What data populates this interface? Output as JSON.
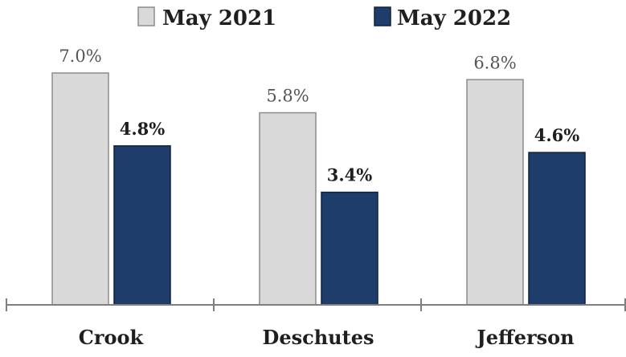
{
  "chart_data": {
    "type": "bar",
    "categories": [
      "Crook",
      "Deschutes",
      "Jefferson"
    ],
    "series": [
      {
        "name": "May 2021",
        "values": [
          7.0,
          5.8,
          6.8
        ],
        "labels": [
          "7.0%",
          "5.8%",
          "6.8%"
        ],
        "color": "#d9d9d9",
        "stroke": "#8c8c8c"
      },
      {
        "name": "May 2022",
        "values": [
          4.8,
          3.4,
          4.6
        ],
        "labels": [
          "4.8%",
          "3.4%",
          "4.6%"
        ],
        "color": "#1f3d6b",
        "stroke": "#0f2140"
      }
    ],
    "title": "",
    "xlabel": "",
    "ylabel": "",
    "ylim": [
      0,
      7.0
    ],
    "grid": false,
    "legend_position": "top-center",
    "axis_color": "#7f7f7f"
  }
}
